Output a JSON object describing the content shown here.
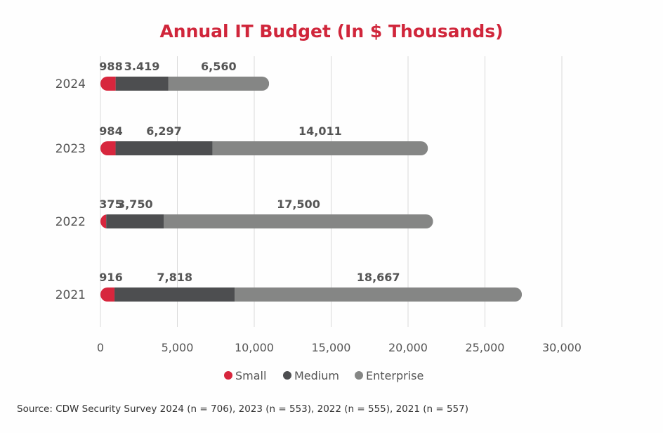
{
  "chart_data": {
    "type": "bar",
    "orientation": "horizontal",
    "stacked": true,
    "title": "Annual IT Budget (In $ Thousands)",
    "categories": [
      "2024",
      "2023",
      "2022",
      "2021"
    ],
    "series": [
      {
        "name": "Small",
        "color": "#d7263d",
        "values": [
          988,
          984,
          375,
          916
        ],
        "labels": [
          "988",
          "984",
          "375",
          "916"
        ]
      },
      {
        "name": "Medium",
        "color": "#4d4e50",
        "values": [
          3419,
          6297,
          3750,
          7818
        ],
        "labels": [
          "3.419",
          "6,297",
          "3,750",
          "7,818"
        ]
      },
      {
        "name": "Enterprise",
        "color": "#858685",
        "values": [
          6560,
          14011,
          17500,
          18667
        ],
        "labels": [
          "6,560",
          "14,011",
          "17,500",
          "18,667"
        ]
      }
    ],
    "xlim": [
      0,
      30000
    ],
    "xticks": [
      "0",
      "5,000",
      "10,000",
      "15,000",
      "20,000",
      "25,000",
      "30,000"
    ],
    "grid": "vertical",
    "legend": "bottom",
    "source": "Source: CDW Security Survey 2024 (n = 706), 2023 (n = 553), 2022 (n = 555), 2021 (n = 557)"
  }
}
